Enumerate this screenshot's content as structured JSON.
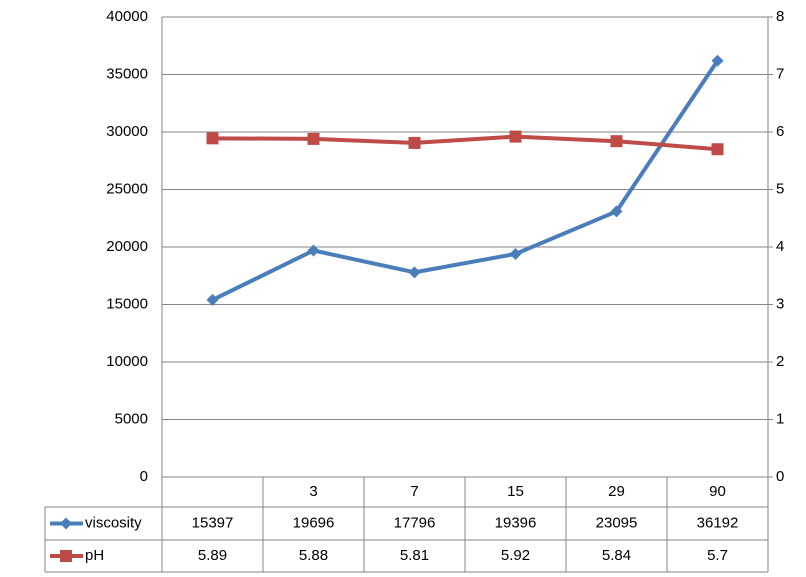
{
  "chart_data": {
    "type": "line",
    "categories": [
      null,
      "3",
      "7",
      "15",
      "29",
      "90"
    ],
    "series": [
      {
        "name": "viscosity",
        "color": "#4a7ebb",
        "marker": "diamond",
        "values": [
          15397,
          19696,
          17796,
          19396,
          23095,
          36192
        ]
      },
      {
        "name": "pH",
        "color": "#be4b48",
        "marker": "square",
        "axis": "y2",
        "values": [
          5.89,
          5.88,
          5.81,
          5.92,
          5.84,
          5.7
        ]
      }
    ],
    "ylim": [
      0,
      40000
    ],
    "yticks": [
      0,
      5000,
      10000,
      15000,
      20000,
      25000,
      30000,
      35000,
      40000
    ],
    "y2lim": [
      0,
      8
    ],
    "y2ticks": [
      0,
      1,
      2,
      3,
      4,
      5,
      6,
      7,
      8
    ],
    "grid": true,
    "data_table": true
  }
}
